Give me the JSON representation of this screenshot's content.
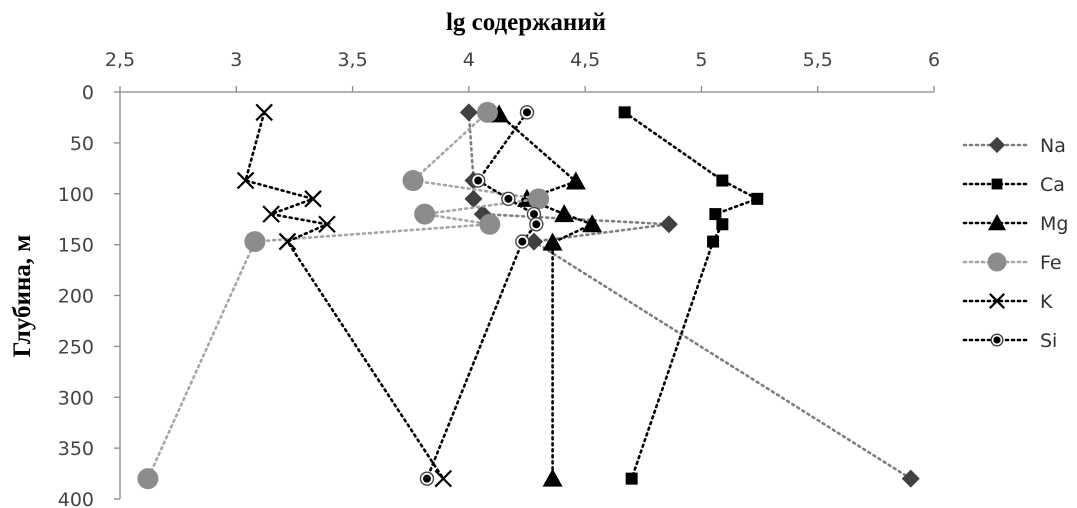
{
  "chart_data": {
    "type": "scatter",
    "xlabel": "lg содержаний",
    "ylabel": "Глубина, м",
    "x_axis_position": "top",
    "y_axis_reversed": true,
    "xlim": [
      2.5,
      6
    ],
    "ylim": [
      0,
      400
    ],
    "x_ticks": [
      "2,5",
      "3",
      "3,5",
      "4",
      "4,5",
      "5",
      "5,5",
      "6"
    ],
    "y_ticks": [
      "0",
      "50",
      "100",
      "150",
      "200",
      "250",
      "300",
      "350",
      "400"
    ],
    "grid": false,
    "legend_position": "right",
    "series": [
      {
        "name": "Na",
        "marker": "diamond",
        "color": "#404040",
        "line_color": "#7f7f7f",
        "points": [
          [
            4.0,
            20
          ],
          [
            4.02,
            87
          ],
          [
            4.02,
            105
          ],
          [
            4.06,
            120
          ],
          [
            4.86,
            130
          ],
          [
            4.28,
            147
          ],
          [
            5.9,
            380
          ]
        ]
      },
      {
        "name": "Ca",
        "marker": "square",
        "color": "#000000",
        "line_color": "#000000",
        "points": [
          [
            4.67,
            20
          ],
          [
            5.09,
            87
          ],
          [
            5.24,
            105
          ],
          [
            5.06,
            120
          ],
          [
            5.09,
            130
          ],
          [
            5.05,
            147
          ],
          [
            4.7,
            380
          ]
        ]
      },
      {
        "name": "Mg",
        "marker": "triangle",
        "color": "#000000",
        "line_color": "#000000",
        "points": [
          [
            4.13,
            22
          ],
          [
            4.46,
            88
          ],
          [
            4.25,
            105
          ],
          [
            4.41,
            120
          ],
          [
            4.53,
            130
          ],
          [
            4.36,
            148
          ],
          [
            4.36,
            380
          ]
        ]
      },
      {
        "name": "Fe",
        "marker": "circle",
        "color": "#8c8c8c",
        "line_color": "#a6a6a6",
        "points": [
          [
            4.08,
            20
          ],
          [
            3.76,
            87
          ],
          [
            4.3,
            105
          ],
          [
            3.81,
            120
          ],
          [
            4.09,
            130
          ],
          [
            3.08,
            147
          ],
          [
            2.62,
            380
          ]
        ]
      },
      {
        "name": "K",
        "marker": "x",
        "color": "#000000",
        "line_color": "#000000",
        "points": [
          [
            3.12,
            20
          ],
          [
            3.04,
            87
          ],
          [
            3.33,
            105
          ],
          [
            3.15,
            120
          ],
          [
            3.39,
            130
          ],
          [
            3.22,
            147
          ],
          [
            3.89,
            380
          ]
        ]
      },
      {
        "name": "Si",
        "marker": "dot-circle",
        "color": "#000000",
        "line_color": "#000000",
        "points": [
          [
            4.25,
            20
          ],
          [
            4.04,
            87
          ],
          [
            4.17,
            105
          ],
          [
            4.28,
            120
          ],
          [
            4.29,
            130
          ],
          [
            4.23,
            147
          ],
          [
            3.82,
            380
          ]
        ]
      }
    ]
  }
}
